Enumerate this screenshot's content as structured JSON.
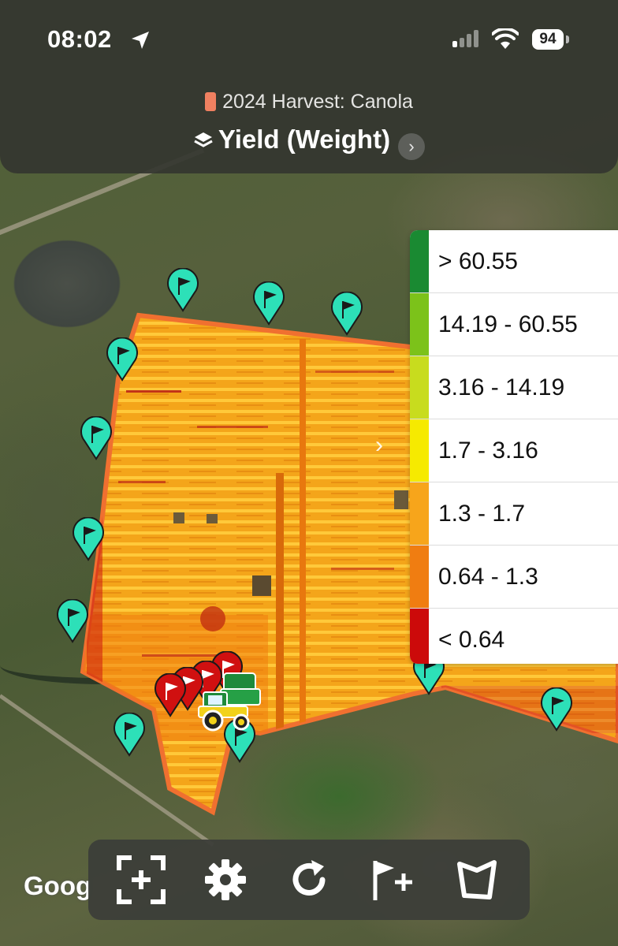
{
  "status_bar": {
    "time": "08:02",
    "battery": "94",
    "icons": [
      "location-arrow-icon",
      "signal-icon",
      "wifi-icon",
      "battery-icon"
    ]
  },
  "header": {
    "season_label": "2024 Harvest: Canola",
    "season_color": "#f08060",
    "layer_title": "Yield (Weight)",
    "layer_icon": "layers-icon",
    "chevron": "›"
  },
  "legend": {
    "toggle": "›",
    "items": [
      {
        "label": "> 60.55",
        "color": "#1a8a32"
      },
      {
        "label": "14.19 - 60.55",
        "color": "#7cc21a"
      },
      {
        "label": "3.16 - 14.19",
        "color": "#c8dc1e"
      },
      {
        "label": "1.7 - 3.16",
        "color": "#f6ea00"
      },
      {
        "label": "1.3 - 1.7",
        "color": "#f7a51b"
      },
      {
        "label": "0.64 - 1.3",
        "color": "#f07d11"
      },
      {
        "label": "< 0.64",
        "color": "#cc0a0a"
      }
    ]
  },
  "map": {
    "attribution": "Goog",
    "marker_icon": "flag-icon",
    "marker_colors": {
      "default": "#2de0b8",
      "selected": "#d01010"
    },
    "field_colors": {
      "base": "#f3a51c",
      "stripe": "#ffc83a",
      "low": "#b51616",
      "edge": "#f07030"
    }
  },
  "toolbar": {
    "buttons": [
      {
        "name": "add-boundary",
        "icon": "frame-plus-icon"
      },
      {
        "name": "settings",
        "icon": "gear-icon"
      },
      {
        "name": "refresh",
        "icon": "refresh-icon"
      },
      {
        "name": "add-flag",
        "icon": "flag-plus-icon"
      },
      {
        "name": "field-shape",
        "icon": "polygon-icon"
      }
    ]
  }
}
